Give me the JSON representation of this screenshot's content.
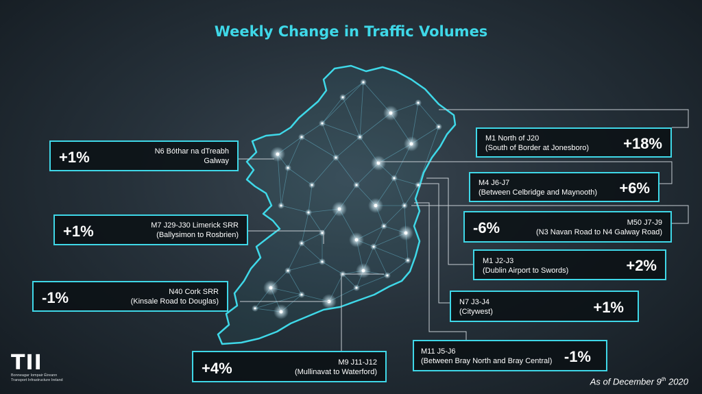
{
  "title": "Weekly Change in Traffic Volumes",
  "accent_color": "#3fd8e8",
  "locations": [
    {
      "id": "n6",
      "pct": "+1%",
      "name": "N6 Bóthar na dTreabh",
      "detail": "Galway"
    },
    {
      "id": "m7",
      "pct": "+1%",
      "name": "M7 J29-J30 Limerick SRR",
      "detail": "(Ballysimon to Rosbrien)"
    },
    {
      "id": "n40",
      "pct": "-1%",
      "name": "N40 Cork SRR",
      "detail": "(Kinsale Road to Douglas)"
    },
    {
      "id": "m9",
      "pct": "+4%",
      "name": "M9 J11-J12",
      "detail": "(Mullinavat to Waterford)"
    },
    {
      "id": "m1n",
      "pct": "+18%",
      "name": "M1 North of J20",
      "detail": "(South of Border at Jonesboro)"
    },
    {
      "id": "m4",
      "pct": "+6%",
      "name": "M4 J6-J7",
      "detail": "(Between Celbridge and Maynooth)"
    },
    {
      "id": "m50",
      "pct": "-6%",
      "name": "M50 J7-J9",
      "detail": "(N3 Navan Road to N4 Galway Road)"
    },
    {
      "id": "m1s",
      "pct": "+2%",
      "name": "M1 J2-J3",
      "detail": "(Dublin Airport to Swords)"
    },
    {
      "id": "n7",
      "pct": "+1%",
      "name": "N7 J3-J4",
      "detail": "(Citywest)"
    },
    {
      "id": "m11",
      "pct": "-1%",
      "name": "M11 J5-J6",
      "detail": "(Between Bray North and Bray Central)"
    }
  ],
  "logo": {
    "mark": "TII",
    "line1": "Bonneagar Iompair Éireann",
    "line2": "Transport Infrastructure Ireland"
  },
  "date": {
    "prefix": "As of December 9",
    "sup": "th",
    "year": " 2020"
  }
}
